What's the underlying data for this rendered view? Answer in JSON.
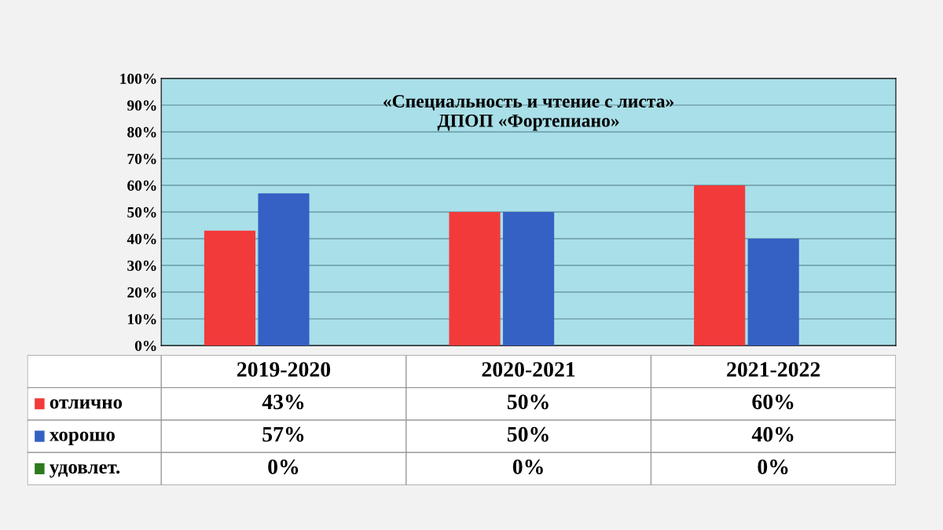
{
  "chart_data": {
    "type": "bar",
    "title": "«Специальность и чтение с листа»\nДПОП «Фортепиано»",
    "categories": [
      "2019-2020",
      "2020-2021",
      "2021-2022"
    ],
    "series": [
      {
        "name": "отлично",
        "color": "#f23a3a",
        "values": [
          43,
          50,
          60
        ],
        "value_labels": [
          "43%",
          "50%",
          "60%"
        ]
      },
      {
        "name": "хорошо",
        "color": "#3560c4",
        "values": [
          57,
          50,
          40
        ],
        "value_labels": [
          "57%",
          "50%",
          "40%"
        ]
      },
      {
        "name": "удовлет.",
        "color": "#2f7a1f",
        "values": [
          0,
          0,
          0
        ],
        "value_labels": [
          "0%",
          "0%",
          "0%"
        ]
      }
    ],
    "ylim": [
      0,
      100
    ],
    "yticks": [
      {
        "value": 0,
        "label": "0%"
      },
      {
        "value": 10,
        "label": "10%"
      },
      {
        "value": 20,
        "label": "20%"
      },
      {
        "value": 30,
        "label": "30%"
      },
      {
        "value": 40,
        "label": "40%"
      },
      {
        "value": 50,
        "label": "50%"
      },
      {
        "value": 60,
        "label": "60%"
      },
      {
        "value": 70,
        "label": "70%"
      },
      {
        "value": 80,
        "label": "80%"
      },
      {
        "value": 90,
        "label": "90%"
      },
      {
        "value": 100,
        "label": "100%"
      }
    ],
    "grid": "y",
    "legend": "bottom left"
  }
}
